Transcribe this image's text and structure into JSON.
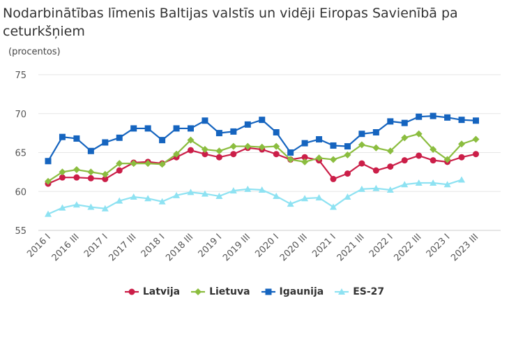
{
  "title": "Nodarbinātības līmenis Baltijas valstīs un vidēji Eiropas Savienībā pa ceturkšņiem",
  "unit_label": "(procentos)",
  "colors": {
    "latvija": "#cb1e48",
    "lietuva": "#8bbd3f",
    "igaunija": "#1564bf",
    "es27": "#8ee2f2"
  },
  "chart_data": {
    "type": "line",
    "x": [
      "2016 I",
      "2016 II",
      "2016 III",
      "2016 IV",
      "2017 I",
      "2017 II",
      "2017 III",
      "2017 IV",
      "2018 I",
      "2018 II",
      "2018 III",
      "2018 IV",
      "2019 I",
      "2019 II",
      "2019 III",
      "2019 IV",
      "2020 I",
      "2020 II",
      "2020 III",
      "2020 IV",
      "2021 I",
      "2021 II",
      "2021 III",
      "2021 IV",
      "2022 I",
      "2022 II",
      "2022 III",
      "2022 IV",
      "2023 I",
      "2023 II",
      "2023 III"
    ],
    "x_tick_labels": [
      "2016 I",
      "2016 III",
      "2017 I",
      "2017 III",
      "2018 I",
      "2018 III",
      "2019 I",
      "2019 III",
      "2020 I",
      "2020 III",
      "2021 I",
      "2021 III",
      "2022 I",
      "2022 III",
      "2023 I",
      "2023 III"
    ],
    "ylim": [
      55,
      75
    ],
    "y_ticks": [
      55,
      60,
      65,
      70,
      75
    ],
    "grid": true,
    "legend_position": "bottom",
    "series": [
      {
        "name": "Latvija",
        "marker": "circle",
        "color_key": "latvija",
        "values": [
          61.0,
          61.8,
          61.8,
          61.7,
          61.6,
          62.7,
          63.7,
          63.8,
          63.6,
          64.4,
          65.3,
          64.8,
          64.4,
          64.8,
          65.6,
          65.4,
          64.8,
          64.1,
          64.4,
          64.0,
          61.6,
          62.3,
          63.6,
          62.7,
          63.2,
          64.0,
          64.6,
          64.0,
          63.8,
          64.4,
          64.8
        ]
      },
      {
        "name": "Lietuva",
        "marker": "diamond",
        "color_key": "lietuva",
        "values": [
          61.3,
          62.5,
          62.8,
          62.5,
          62.2,
          63.6,
          63.6,
          63.6,
          63.5,
          64.8,
          66.6,
          65.4,
          65.2,
          65.8,
          65.8,
          65.7,
          65.8,
          64.1,
          63.8,
          64.3,
          64.1,
          64.7,
          66.0,
          65.6,
          65.2,
          66.9,
          67.4,
          65.4,
          64.1,
          66.1,
          66.7
        ]
      },
      {
        "name": "Igaunija",
        "marker": "square",
        "color_key": "igaunija",
        "values": [
          63.9,
          67.0,
          66.8,
          65.2,
          66.3,
          66.9,
          68.1,
          68.1,
          66.6,
          68.1,
          68.1,
          69.1,
          67.5,
          67.7,
          68.6,
          69.2,
          67.6,
          65.0,
          66.2,
          66.7,
          65.9,
          65.8,
          67.4,
          67.6,
          69.0,
          68.8,
          69.6,
          69.7,
          69.5,
          69.2,
          69.1
        ]
      },
      {
        "name": "ES-27",
        "marker": "triangle",
        "color_key": "es27",
        "values": [
          57.1,
          57.9,
          58.3,
          58.0,
          57.8,
          58.8,
          59.3,
          59.1,
          58.7,
          59.5,
          59.9,
          59.7,
          59.4,
          60.1,
          60.3,
          60.2,
          59.4,
          58.4,
          59.1,
          59.2,
          58.0,
          59.3,
          60.3,
          60.4,
          60.2,
          60.9,
          61.1,
          61.1,
          60.9,
          61.5,
          null
        ]
      }
    ]
  }
}
